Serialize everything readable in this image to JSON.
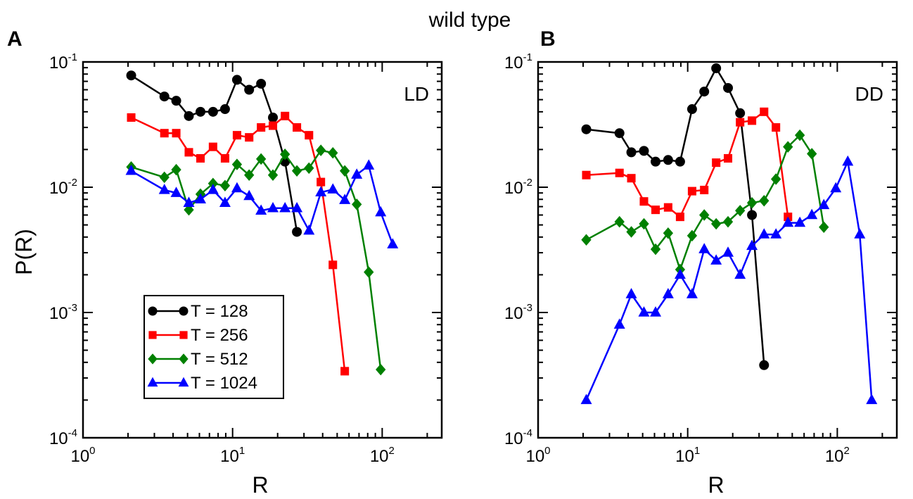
{
  "title": "wild type",
  "chart_data": [
    {
      "panel": "A",
      "label": "LD",
      "type": "line",
      "xlabel": "R",
      "ylabel": "P(R)",
      "xscale": "log",
      "yscale": "log",
      "xlim": [
        1,
        250
      ],
      "ylim": [
        0.0001,
        0.1
      ],
      "xticks": [
        {
          "value": 1,
          "base": "10",
          "exp": "0"
        },
        {
          "value": 10,
          "base": "10",
          "exp": "1"
        },
        {
          "value": 100,
          "base": "10",
          "exp": "2"
        }
      ],
      "yticks": [
        {
          "value": 0.0001,
          "base": "10",
          "exp": "-4"
        },
        {
          "value": 0.001,
          "base": "10",
          "exp": "-3"
        },
        {
          "value": 0.01,
          "base": "10",
          "exp": "-2"
        },
        {
          "value": 0.1,
          "base": "10",
          "exp": "-1"
        }
      ],
      "legend_position": "bottom-left",
      "series": [
        {
          "name": "T =  128",
          "color": "#000000",
          "marker": "circle",
          "x": [
            2.1,
            3.5,
            4.2,
            5.1,
            6.1,
            7.4,
            8.9,
            10.7,
            12.9,
            15.5,
            18.6,
            22.4,
            26.9
          ],
          "y": [
            0.078,
            0.053,
            0.049,
            0.037,
            0.04,
            0.04,
            0.042,
            0.072,
            0.06,
            0.067,
            0.036,
            0.016,
            0.0044
          ]
        },
        {
          "name": "T =  256",
          "color": "#ff0000",
          "marker": "square",
          "x": [
            2.1,
            3.5,
            4.2,
            5.1,
            6.1,
            7.4,
            8.9,
            10.7,
            12.9,
            15.5,
            18.6,
            22.4,
            26.9,
            32.4,
            38.9,
            46.8,
            56.2
          ],
          "y": [
            0.036,
            0.027,
            0.027,
            0.019,
            0.017,
            0.021,
            0.017,
            0.026,
            0.025,
            0.03,
            0.031,
            0.037,
            0.03,
            0.026,
            0.011,
            0.0024,
            0.00034
          ]
        },
        {
          "name": "T =  512",
          "color": "#008000",
          "marker": "diamond",
          "x": [
            2.1,
            3.5,
            4.2,
            5.1,
            6.1,
            7.4,
            8.9,
            10.7,
            12.9,
            15.5,
            18.6,
            22.4,
            26.9,
            32.4,
            38.9,
            46.8,
            56.2,
            67.6,
            81.3,
            97.7
          ],
          "y": [
            0.0145,
            0.012,
            0.0138,
            0.0066,
            0.0088,
            0.0107,
            0.0103,
            0.0152,
            0.0125,
            0.0168,
            0.0125,
            0.0183,
            0.0135,
            0.0142,
            0.0197,
            0.0188,
            0.0135,
            0.0073,
            0.0021,
            0.00035
          ]
        },
        {
          "name": "T = 1024",
          "color": "#0000ff",
          "marker": "triangle",
          "x": [
            2.1,
            3.5,
            4.2,
            5.1,
            6.1,
            7.4,
            8.9,
            10.7,
            12.9,
            15.5,
            18.6,
            22.4,
            26.9,
            32.4,
            38.9,
            46.8,
            56.2,
            67.6,
            81.3,
            97.7,
            117.5
          ],
          "y": [
            0.0135,
            0.0095,
            0.009,
            0.0075,
            0.008,
            0.0095,
            0.0075,
            0.0098,
            0.0085,
            0.0065,
            0.0068,
            0.0068,
            0.0068,
            0.0045,
            0.0091,
            0.0096,
            0.0079,
            0.0126,
            0.0149,
            0.0063,
            0.0035
          ]
        }
      ]
    },
    {
      "panel": "B",
      "label": "DD",
      "type": "line",
      "xlabel": "R",
      "ylabel": "",
      "xscale": "log",
      "yscale": "log",
      "xlim": [
        1,
        250
      ],
      "ylim": [
        0.0001,
        0.1
      ],
      "xticks": [
        {
          "value": 1,
          "base": "10",
          "exp": "0"
        },
        {
          "value": 10,
          "base": "10",
          "exp": "1"
        },
        {
          "value": 100,
          "base": "10",
          "exp": "2"
        }
      ],
      "yticks": [
        {
          "value": 0.0001,
          "base": "10",
          "exp": "-4"
        },
        {
          "value": 0.001,
          "base": "10",
          "exp": "-3"
        },
        {
          "value": 0.01,
          "base": "10",
          "exp": "-2"
        },
        {
          "value": 0.1,
          "base": "10",
          "exp": "-1"
        }
      ],
      "series": [
        {
          "name": "T =  128",
          "color": "#000000",
          "marker": "circle",
          "x": [
            2.1,
            3.5,
            4.2,
            5.1,
            6.1,
            7.4,
            8.9,
            10.7,
            12.9,
            15.5,
            18.6,
            22.4,
            26.9,
            32.4
          ],
          "y": [
            0.029,
            0.027,
            0.019,
            0.0195,
            0.016,
            0.0165,
            0.016,
            0.042,
            0.058,
            0.089,
            0.062,
            0.039,
            0.006,
            0.00038
          ]
        },
        {
          "name": "T =  256",
          "color": "#ff0000",
          "marker": "square",
          "x": [
            2.1,
            3.5,
            4.2,
            5.1,
            6.1,
            7.4,
            8.9,
            10.7,
            12.9,
            15.5,
            18.6,
            22.4,
            26.9,
            32.4,
            38.9,
            46.8
          ],
          "y": [
            0.0125,
            0.013,
            0.0118,
            0.0077,
            0.0066,
            0.0069,
            0.0058,
            0.0093,
            0.0095,
            0.0157,
            0.017,
            0.033,
            0.034,
            0.04,
            0.03,
            0.0058
          ]
        },
        {
          "name": "T =  512",
          "color": "#008000",
          "marker": "diamond",
          "x": [
            2.1,
            3.5,
            4.2,
            5.1,
            6.1,
            7.4,
            8.9,
            10.7,
            12.9,
            15.5,
            18.6,
            22.4,
            26.9,
            32.4,
            38.9,
            46.8,
            56.2,
            67.6,
            81.3
          ],
          "y": [
            0.0038,
            0.0053,
            0.0044,
            0.0051,
            0.0032,
            0.0043,
            0.0022,
            0.0041,
            0.006,
            0.0051,
            0.0053,
            0.0065,
            0.0075,
            0.0078,
            0.0116,
            0.021,
            0.026,
            0.0185,
            0.0048
          ]
        },
        {
          "name": "T = 1024",
          "color": "#0000ff",
          "marker": "triangle",
          "x": [
            2.1,
            3.5,
            4.2,
            5.1,
            6.1,
            7.4,
            8.9,
            10.7,
            12.9,
            15.5,
            18.6,
            22.4,
            26.9,
            32.4,
            38.9,
            46.8,
            56.2,
            67.6,
            81.3,
            97.7,
            117.5,
            141.3,
            169.8
          ],
          "y": [
            0.0002,
            0.0008,
            0.0014,
            0.001,
            0.001,
            0.0014,
            0.002,
            0.0014,
            0.0032,
            0.0026,
            0.003,
            0.002,
            0.0034,
            0.0042,
            0.0042,
            0.0052,
            0.0052,
            0.006,
            0.0072,
            0.0098,
            0.016,
            0.0042,
            0.0002
          ]
        }
      ]
    }
  ]
}
